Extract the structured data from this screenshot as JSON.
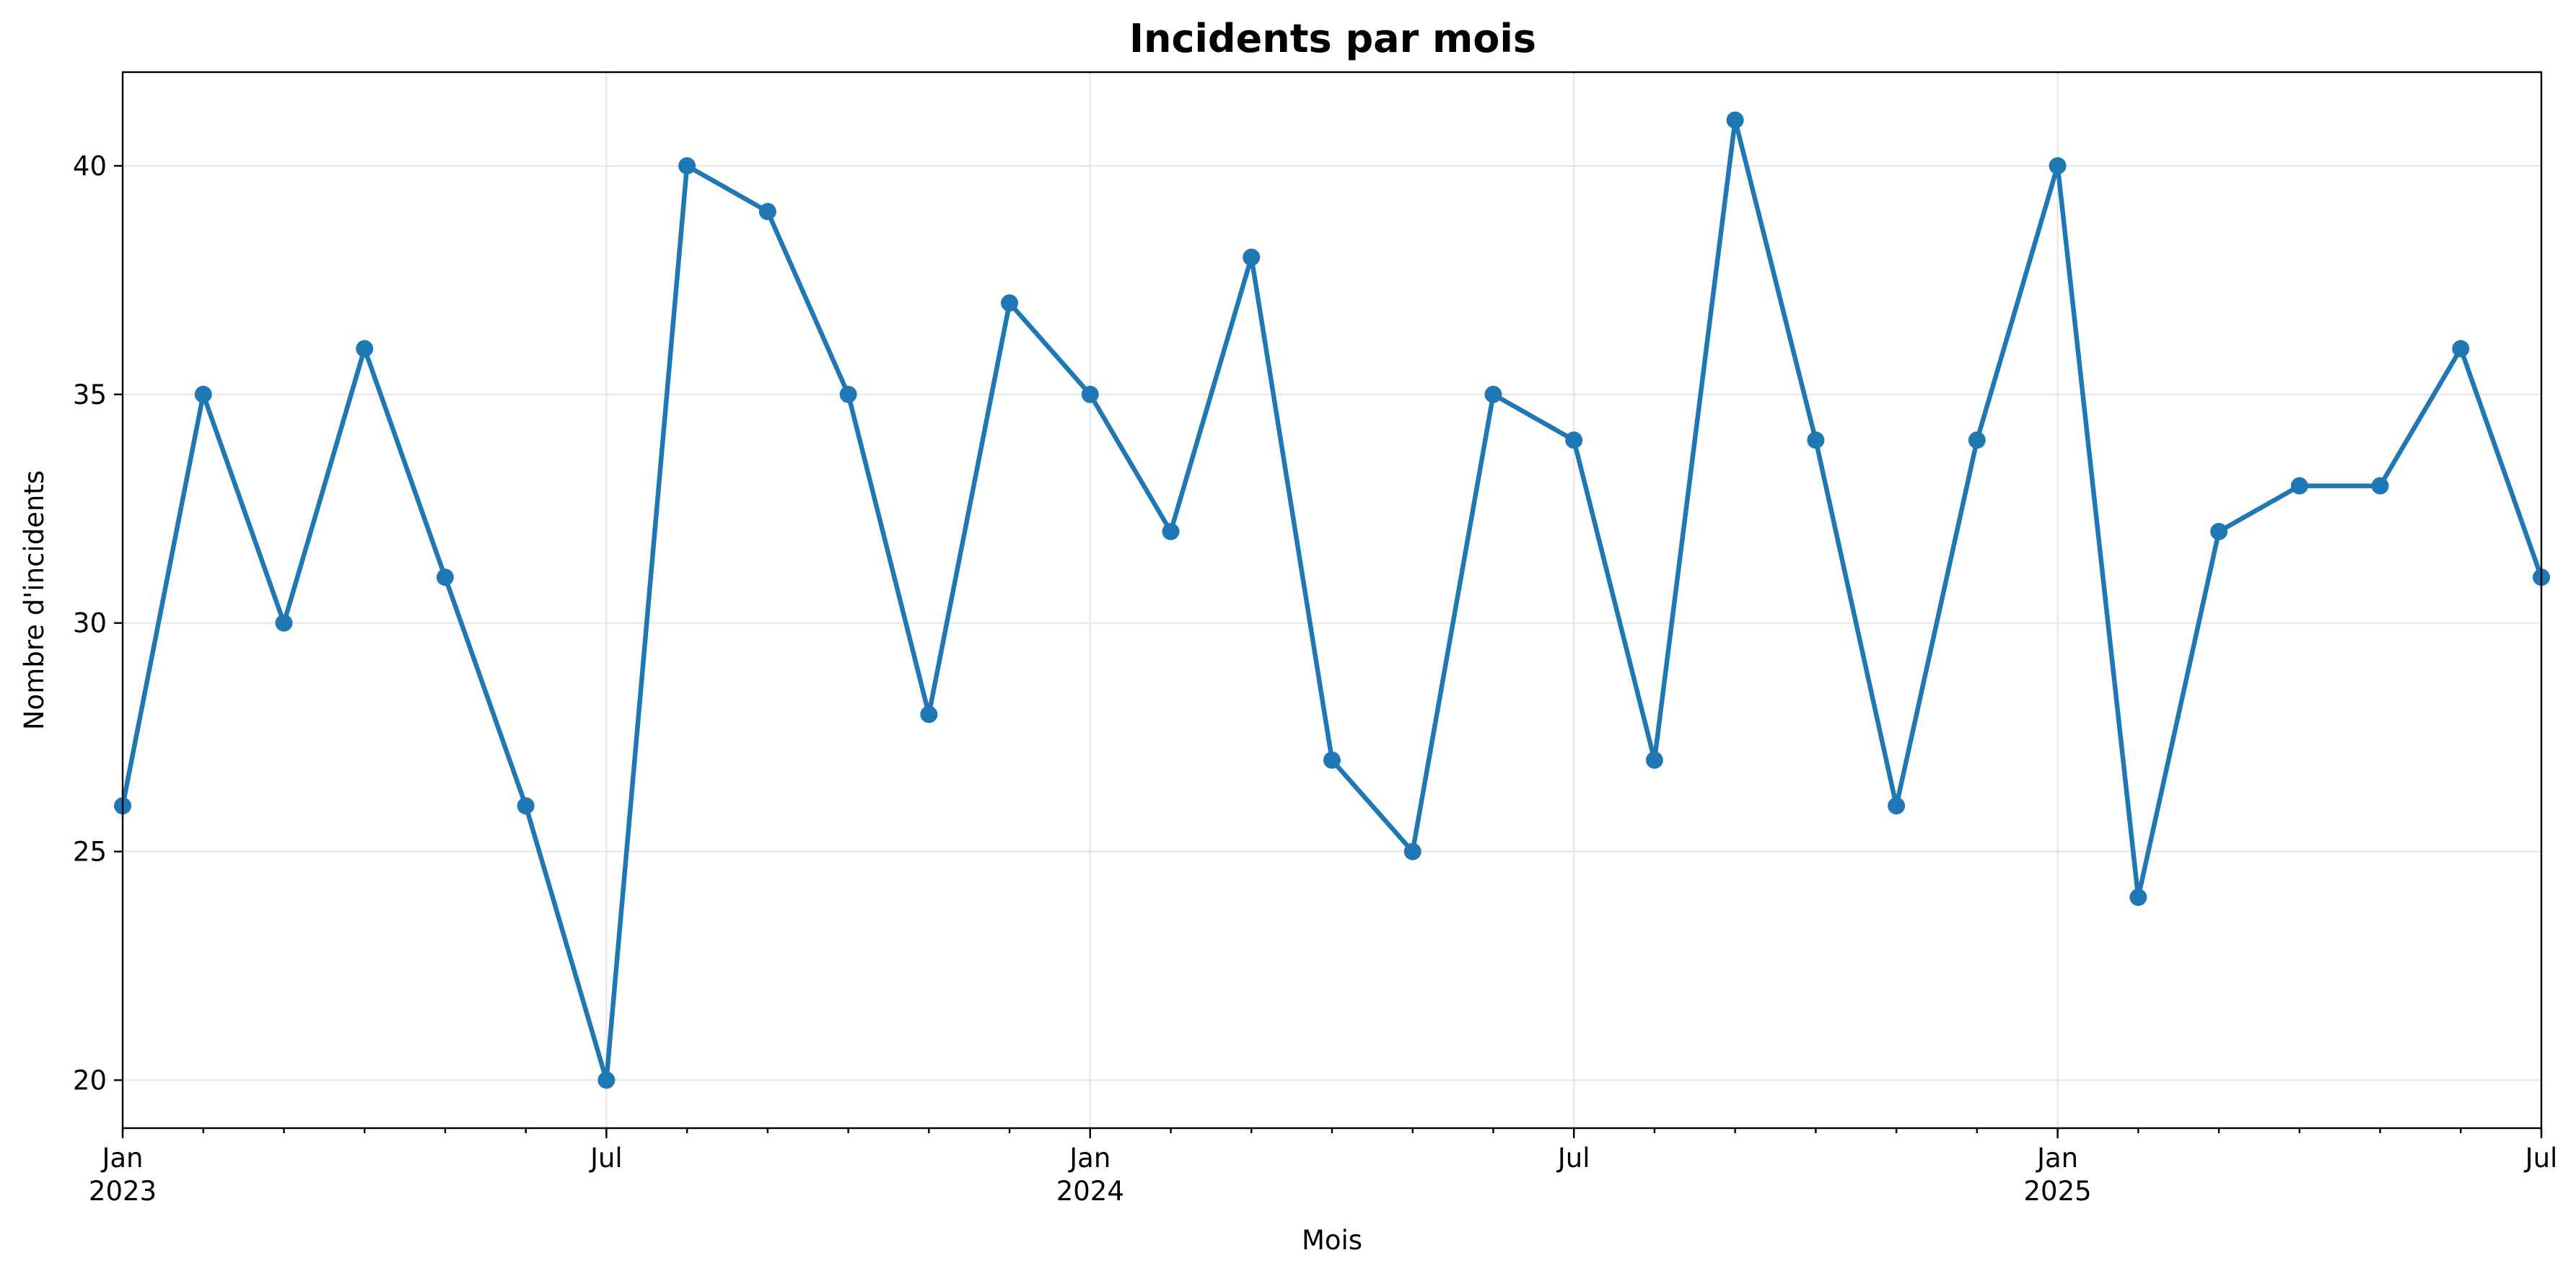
{
  "chart_data": {
    "type": "line",
    "title": "Incidents par mois",
    "xlabel": "Mois",
    "ylabel": "Nombre d'incidents",
    "x": [
      "2023-01",
      "2023-02",
      "2023-03",
      "2023-04",
      "2023-05",
      "2023-06",
      "2023-07",
      "2023-08",
      "2023-09",
      "2023-10",
      "2023-11",
      "2023-12",
      "2024-01",
      "2024-02",
      "2024-03",
      "2024-04",
      "2024-05",
      "2024-06",
      "2024-07",
      "2024-08",
      "2024-09",
      "2024-10",
      "2024-11",
      "2024-12",
      "2025-01",
      "2025-02",
      "2025-03",
      "2025-04",
      "2025-05",
      "2025-06",
      "2025-07"
    ],
    "series": [
      {
        "values": [
          26,
          35,
          30,
          36,
          31,
          26,
          20,
          40,
          39,
          35,
          28,
          37,
          35,
          32,
          38,
          27,
          25,
          35,
          34,
          27,
          41,
          34,
          26,
          34,
          40,
          24,
          32,
          33,
          33,
          36,
          31
        ],
        "color": "#1f77b4"
      }
    ],
    "xlim": [
      "2023-01",
      "2025-07"
    ],
    "ylim": [
      18.95,
      42.05
    ],
    "yticks": [
      20,
      25,
      30,
      35,
      40
    ],
    "xticks": [
      {
        "month": "2023-01",
        "label": "Jan",
        "sublabel": "2023"
      },
      {
        "month": "2023-07",
        "label": "Jul",
        "sublabel": ""
      },
      {
        "month": "2024-01",
        "label": "Jan",
        "sublabel": "2024"
      },
      {
        "month": "2024-07",
        "label": "Jul",
        "sublabel": ""
      },
      {
        "month": "2025-01",
        "label": "Jan",
        "sublabel": "2025"
      },
      {
        "month": "2025-07",
        "label": "Jul",
        "sublabel": ""
      }
    ],
    "grid": true,
    "legend": "none"
  }
}
